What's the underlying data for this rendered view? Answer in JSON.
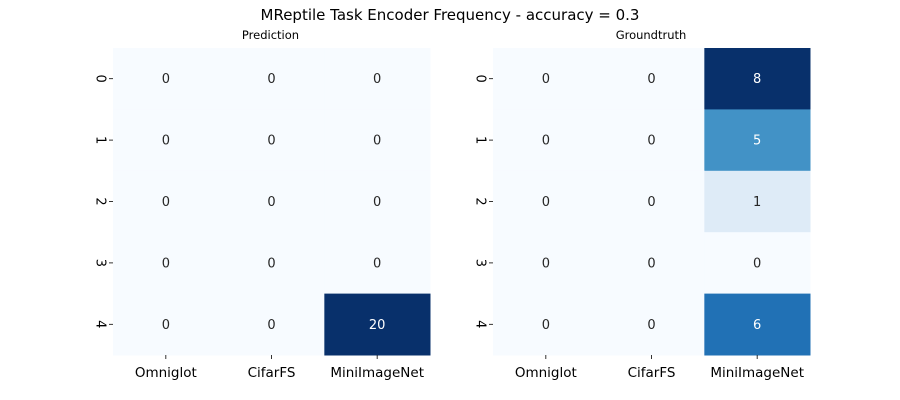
{
  "figure": {
    "title": "MReptile Task Encoder Frequency - accuracy = 0.3"
  },
  "colormap": {
    "name": "Blues",
    "low": "#f7fbff",
    "high": "#08306b"
  },
  "chart_data": [
    {
      "type": "heatmap",
      "title": "Prediction",
      "xlabel": "",
      "ylabel": "",
      "x_categories": [
        "Omniglot",
        "CifarFS",
        "MiniImageNet"
      ],
      "y_categories": [
        "0",
        "1",
        "2",
        "3",
        "4"
      ],
      "values": [
        [
          0,
          0,
          0
        ],
        [
          0,
          0,
          0
        ],
        [
          0,
          0,
          0
        ],
        [
          0,
          0,
          0
        ],
        [
          0,
          0,
          20
        ]
      ],
      "annotated": true,
      "colorbar": false
    },
    {
      "type": "heatmap",
      "title": "Groundtruth",
      "xlabel": "",
      "ylabel": "",
      "x_categories": [
        "Omniglot",
        "CifarFS",
        "MiniImageNet"
      ],
      "y_categories": [
        "0",
        "1",
        "2",
        "3",
        "4"
      ],
      "values": [
        [
          0,
          0,
          8
        ],
        [
          0,
          0,
          5
        ],
        [
          0,
          0,
          1
        ],
        [
          0,
          0,
          0
        ],
        [
          0,
          0,
          6
        ]
      ],
      "annotated": true,
      "colorbar": false
    }
  ]
}
